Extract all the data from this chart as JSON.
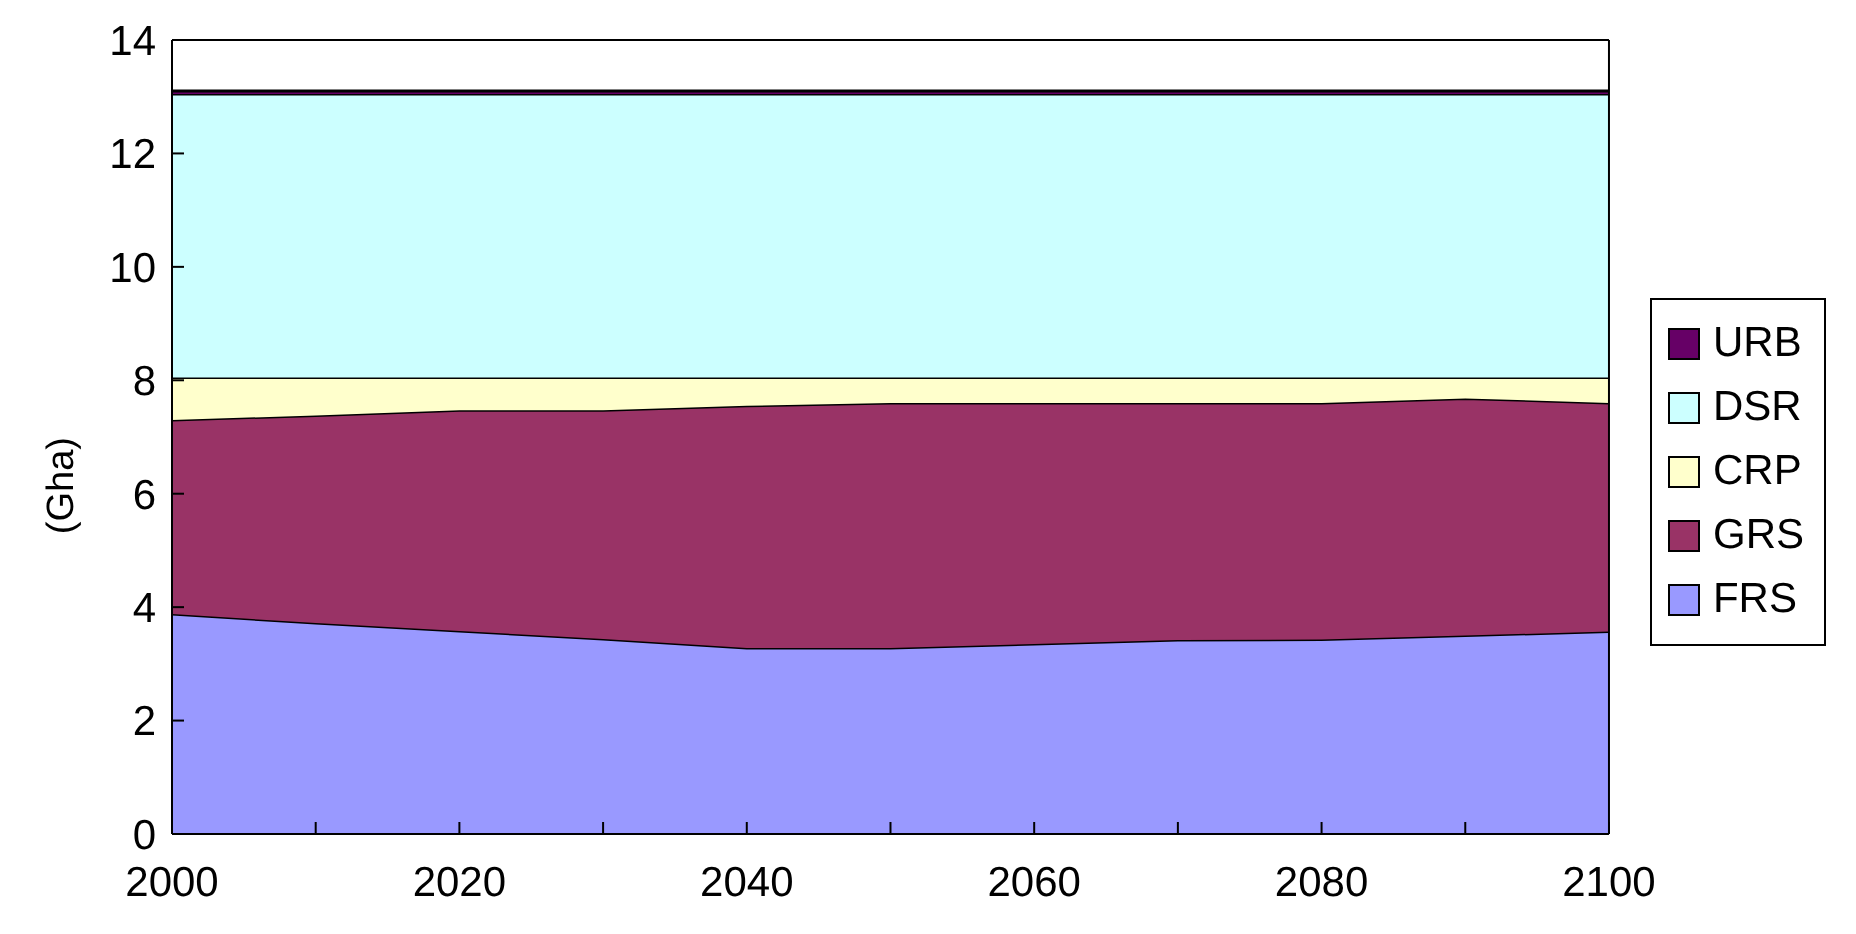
{
  "chart_data": {
    "type": "area",
    "stacked": true,
    "ylabel": "(Gha)",
    "x": [
      2000,
      2010,
      2020,
      2030,
      2040,
      2050,
      2060,
      2070,
      2080,
      2090,
      2100
    ],
    "xlim": [
      2000,
      2100
    ],
    "xticks": [
      2000,
      {
        "value": 2010,
        "label": null
      },
      2020,
      {
        "value": 2030,
        "label": null
      },
      2040,
      {
        "value": 2050,
        "label": null
      },
      2060,
      {
        "value": 2070,
        "label": null
      },
      2080,
      {
        "value": 2090,
        "label": null
      },
      2100
    ],
    "ylim": [
      0,
      14
    ],
    "yticks": [
      0,
      2,
      4,
      6,
      8,
      10,
      12,
      14
    ],
    "grid": false,
    "legend": "right",
    "series": [
      {
        "name": "FRS",
        "color": "#9999ff",
        "values": [
          3.88,
          3.72,
          3.58,
          3.44,
          3.28,
          3.28,
          3.35,
          3.42,
          3.43,
          3.5,
          3.57
        ]
      },
      {
        "name": "GRS",
        "color": "#993366",
        "values": [
          3.42,
          3.66,
          3.89,
          4.03,
          4.27,
          4.32,
          4.25,
          4.18,
          4.17,
          4.18,
          4.03
        ]
      },
      {
        "name": "CRP",
        "color": "#ffffcc",
        "values": [
          0.75,
          0.67,
          0.58,
          0.58,
          0.5,
          0.45,
          0.45,
          0.45,
          0.45,
          0.37,
          0.45
        ]
      },
      {
        "name": "DSR",
        "color": "#ccffff",
        "values": [
          5.0,
          5.0,
          5.0,
          5.0,
          5.0,
          5.0,
          5.0,
          5.0,
          5.0,
          5.0,
          5.0
        ]
      },
      {
        "name": "URB",
        "color": "#660066",
        "values": [
          0.05,
          0.05,
          0.05,
          0.05,
          0.05,
          0.05,
          0.05,
          0.05,
          0.05,
          0.05,
          0.05
        ]
      }
    ]
  }
}
